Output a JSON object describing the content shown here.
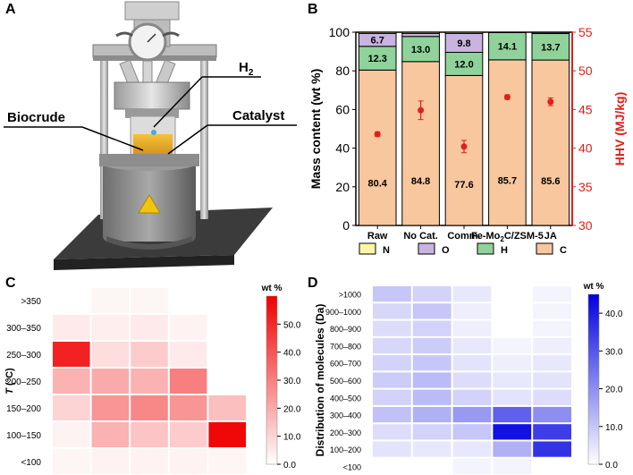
{
  "panels": {
    "a": {
      "letter": "A",
      "labels": {
        "h2": "H",
        "h2_sub": "2",
        "biocrude": "Biocrude",
        "catalyst": "Catalyst"
      }
    },
    "b": {
      "letter": "B"
    },
    "c": {
      "letter": "C"
    },
    "d": {
      "letter": "D"
    }
  },
  "colors": {
    "N": "#fdf6a3",
    "O": "#c9b3e0",
    "H": "#8fd39a",
    "C": "#f8c79e",
    "hhv": "#e0201b",
    "heat_c": "#f00000",
    "heat_d": "#0000e0"
  },
  "chart_data": [
    {
      "type": "bar",
      "title": "",
      "categories": [
        "Raw",
        "No Cat.",
        "Comm.",
        "Fe-Mo2C/ZSM-5",
        "JA"
      ],
      "series": [
        {
          "name": "C",
          "values": [
            80.4,
            84.8,
            77.6,
            85.7,
            85.6
          ]
        },
        {
          "name": "H",
          "values": [
            12.3,
            13.0,
            12.0,
            14.1,
            13.7
          ]
        },
        {
          "name": "O",
          "values": [
            6.7,
            1.6,
            9.8,
            0.1,
            0.6
          ]
        },
        {
          "name": "N",
          "values": [
            0.6,
            0.6,
            0.6,
            0.1,
            0.1
          ]
        }
      ],
      "labels": {
        "C": [
          "80.4",
          "84.8",
          "77.6",
          "85.7",
          "85.6"
        ],
        "H": [
          "12.3",
          "13.0",
          "12.0",
          "14.1",
          "13.7"
        ],
        "O": [
          "6.7",
          "",
          "9.8",
          "",
          ""
        ]
      },
      "xlabel": "",
      "ylabel": "Mass content (wt %)",
      "ylim": [
        0,
        100
      ],
      "yticks": [
        "0",
        "20",
        "40",
        "60",
        "80",
        "100"
      ],
      "y2label": "HHV (MJ/kg)",
      "y2lim": [
        30,
        55
      ],
      "y2ticks": [
        "30",
        "35",
        "40",
        "45",
        "50",
        "55"
      ],
      "hhv": [
        41.8,
        44.9,
        40.2,
        46.6,
        46.0
      ],
      "hhv_err": [
        0.3,
        1.2,
        0.8,
        0.3,
        0.5
      ],
      "legend": [
        "N",
        "O",
        "H",
        "C"
      ],
      "legend_position": "bottom"
    },
    {
      "type": "heatmap",
      "ylabel": "T (°C)",
      "ylabel_italic": "T",
      "ylabel_rest": " (°C)",
      "rows": [
        ">350",
        "300–350",
        "250–300",
        "200–250",
        "150–200",
        "100–150",
        "<100"
      ],
      "values": [
        [
          null,
          2,
          2,
          null,
          null
        ],
        [
          5,
          4,
          5,
          3,
          null
        ],
        [
          52,
          8,
          12,
          5,
          null
        ],
        [
          18,
          20,
          18,
          30,
          null
        ],
        [
          10,
          25,
          28,
          25,
          15
        ],
        [
          3,
          18,
          14,
          12,
          58
        ],
        [
          2,
          3,
          3,
          3,
          2
        ]
      ],
      "colorbar_title": "wt %",
      "colorbar_ticks": [
        "0.0",
        "10.0",
        "20.0",
        "30.0",
        "40.0",
        "50.0"
      ],
      "range": [
        0,
        60
      ]
    },
    {
      "type": "heatmap",
      "ylabel": "Distribution of molecules (Da)",
      "rows": [
        ">1000",
        "900–1000",
        "800–900",
        "700–800",
        "600–700",
        "500–600",
        "400–500",
        "300–400",
        "200–300",
        "100–200",
        "<100"
      ],
      "values": [
        [
          10,
          8,
          4,
          null,
          2
        ],
        [
          7,
          10,
          3,
          null,
          2
        ],
        [
          6,
          8,
          3,
          null,
          2
        ],
        [
          7,
          9,
          4,
          2,
          3
        ],
        [
          8,
          10,
          5,
          3,
          4
        ],
        [
          9,
          12,
          6,
          4,
          5
        ],
        [
          8,
          12,
          8,
          5,
          6
        ],
        [
          11,
          14,
          18,
          28,
          20
        ],
        [
          6,
          8,
          10,
          42,
          34
        ],
        [
          5,
          4,
          4,
          14,
          36
        ],
        [
          null,
          null,
          2,
          2,
          null
        ]
      ],
      "colorbar_title": "wt %",
      "colorbar_ticks": [
        "0.0",
        "10.0",
        "20.0",
        "30.0",
        "40.0"
      ],
      "range": [
        0,
        45
      ]
    }
  ]
}
